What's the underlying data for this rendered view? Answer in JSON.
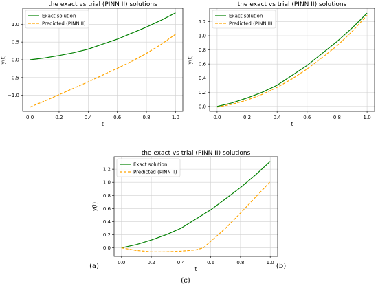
{
  "figure_captions": [
    "(a)",
    "(b)",
    "(c)"
  ],
  "chart_data": [
    {
      "type": "line",
      "title": "the exact vs trial (PINN II) solutions",
      "xlabel": "t",
      "ylabel": "y(t)",
      "xlim": [
        -0.05,
        1.05
      ],
      "ylim": [
        -1.45,
        1.45
      ],
      "xticks": [
        "0.0",
        "0.2",
        "0.4",
        "0.6",
        "0.8",
        "1.0"
      ],
      "yticks": [
        "−1.0",
        "−0.5",
        "0.0",
        "0.5",
        "1.0"
      ],
      "ytick_values": [
        -1.0,
        -0.5,
        0.0,
        0.5,
        1.0
      ],
      "grid": true,
      "legend_position": "upper-left",
      "series": [
        {
          "name": "Exact solution",
          "color": "#008000",
          "style": "solid",
          "x": [
            0.0,
            0.1,
            0.2,
            0.3,
            0.4,
            0.5,
            0.6,
            0.7,
            0.8,
            0.9,
            1.0
          ],
          "y": [
            0.0,
            0.05,
            0.12,
            0.2,
            0.3,
            0.44,
            0.58,
            0.75,
            0.92,
            1.11,
            1.32
          ]
        },
        {
          "name": "Predicted (PINN II)",
          "color": "#FFA500",
          "style": "dashed",
          "x": [
            0.0,
            0.1,
            0.2,
            0.3,
            0.4,
            0.5,
            0.6,
            0.7,
            0.8,
            0.9,
            1.0
          ],
          "y": [
            -1.33,
            -1.16,
            -0.98,
            -0.8,
            -0.62,
            -0.43,
            -0.24,
            -0.04,
            0.18,
            0.43,
            0.72
          ]
        }
      ]
    },
    {
      "type": "line",
      "title": "the exact vs trial (PINN II) solutions",
      "xlabel": "t",
      "ylabel": "y(t)",
      "xlim": [
        -0.05,
        1.05
      ],
      "ylim": [
        -0.07,
        1.39
      ],
      "xticks": [
        "0.0",
        "0.2",
        "0.4",
        "0.6",
        "0.8",
        "1.0"
      ],
      "yticks": [
        "0.0",
        "0.2",
        "0.4",
        "0.6",
        "0.8",
        "1.0",
        "1.2"
      ],
      "ytick_values": [
        0.0,
        0.2,
        0.4,
        0.6,
        0.8,
        1.0,
        1.2
      ],
      "grid": true,
      "legend_position": "upper-left",
      "series": [
        {
          "name": "Exact solution",
          "color": "#008000",
          "style": "solid",
          "x": [
            0.0,
            0.1,
            0.2,
            0.3,
            0.4,
            0.5,
            0.6,
            0.7,
            0.8,
            0.9,
            1.0
          ],
          "y": [
            0.0,
            0.05,
            0.12,
            0.2,
            0.3,
            0.44,
            0.58,
            0.75,
            0.92,
            1.11,
            1.32
          ]
        },
        {
          "name": "Predicted (PINN II)",
          "color": "#FFA500",
          "style": "dashed",
          "x": [
            0.0,
            0.1,
            0.2,
            0.3,
            0.4,
            0.5,
            0.6,
            0.7,
            0.8,
            0.9,
            1.0
          ],
          "y": [
            -0.01,
            0.03,
            0.09,
            0.17,
            0.27,
            0.39,
            0.53,
            0.69,
            0.86,
            1.06,
            1.29
          ]
        }
      ]
    },
    {
      "type": "line",
      "title": "the exact vs trial (PINN II) solutions",
      "xlabel": "t",
      "ylabel": "y(t)",
      "xlim": [
        -0.05,
        1.05
      ],
      "ylim": [
        -0.13,
        1.39
      ],
      "xticks": [
        "0.0",
        "0.2",
        "0.4",
        "0.6",
        "0.8",
        "1.0"
      ],
      "yticks": [
        "0.0",
        "0.2",
        "0.4",
        "0.6",
        "0.8",
        "1.0",
        "1.2"
      ],
      "ytick_values": [
        0.0,
        0.2,
        0.4,
        0.6,
        0.8,
        1.0,
        1.2
      ],
      "grid": true,
      "legend_position": "upper-left",
      "series": [
        {
          "name": "Exact solution",
          "color": "#008000",
          "style": "solid",
          "x": [
            0.0,
            0.1,
            0.2,
            0.3,
            0.4,
            0.5,
            0.6,
            0.7,
            0.8,
            0.9,
            1.0
          ],
          "y": [
            0.0,
            0.05,
            0.12,
            0.2,
            0.3,
            0.44,
            0.58,
            0.75,
            0.92,
            1.11,
            1.32
          ]
        },
        {
          "name": "Predicted (PINN II)",
          "color": "#FFA500",
          "style": "dashed",
          "x": [
            0.0,
            0.1,
            0.2,
            0.3,
            0.4,
            0.5,
            0.55,
            0.6,
            0.7,
            0.8,
            0.9,
            1.0
          ],
          "y": [
            0.0,
            -0.04,
            -0.06,
            -0.06,
            -0.05,
            -0.03,
            0.0,
            0.1,
            0.3,
            0.53,
            0.77,
            1.01
          ]
        }
      ]
    }
  ]
}
